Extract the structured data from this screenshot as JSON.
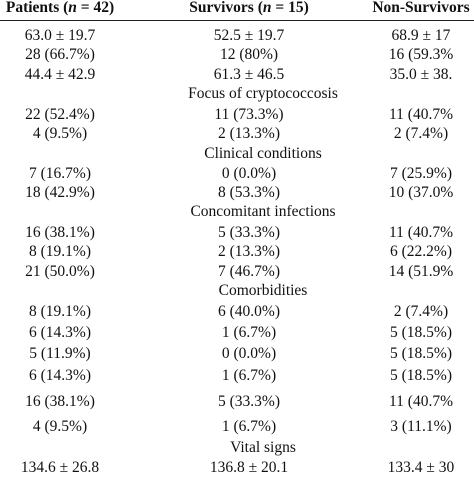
{
  "header": {
    "col1": "Patients (n = 42)",
    "col2": "Survivors (n = 15)",
    "col3": "Non-Survivors"
  },
  "rows": [
    {
      "type": "data",
      "values": [
        "63.0 ± 19.7",
        "52.5 ± 19.7",
        "68.9 ± 17"
      ]
    },
    {
      "type": "data",
      "values": [
        "28 (66.7%)",
        "12 (80%)",
        "16 (59.3%"
      ]
    },
    {
      "type": "data",
      "values": [
        "44.4 ± 42.9",
        "61.3 ± 46.5",
        "35.0 ± 38."
      ]
    },
    {
      "type": "section",
      "label": "Focus of cryptococcosis"
    },
    {
      "type": "data",
      "values": [
        "22 (52.4%)",
        "11 (73.3%)",
        "11 (40.7%"
      ]
    },
    {
      "type": "data",
      "values": [
        "4 (9.5%)",
        "2 (13.3%)",
        "2 (7.4%)"
      ]
    },
    {
      "type": "section",
      "label": "Clinical conditions"
    },
    {
      "type": "data",
      "values": [
        "7 (16.7%)",
        "0 (0.0%)",
        "7 (25.9%)"
      ]
    },
    {
      "type": "data",
      "values": [
        "18 (42.9%)",
        "8 (53.3%)",
        "10 (37.0%"
      ]
    },
    {
      "type": "section",
      "label": "Concomitant infections"
    },
    {
      "type": "data",
      "values": [
        "16 (38.1%)",
        "5 (33.3%)",
        "11 (40.7%"
      ]
    },
    {
      "type": "data",
      "values": [
        "8 (19.1%)",
        "2 (13.3%)",
        "6 (22.2%)"
      ]
    },
    {
      "type": "data",
      "values": [
        "21 (50.0%)",
        "7 (46.7%)",
        "14 (51.9%"
      ]
    },
    {
      "type": "section",
      "label": "Comorbidities"
    },
    {
      "type": "data",
      "values": [
        "8 (19.1%)",
        "6 (40.0%)",
        "2 (7.4%)"
      ]
    },
    {
      "type": "data",
      "values": [
        "6 (14.3%)",
        "1 (6.7%)",
        "5 (18.5%)"
      ]
    },
    {
      "type": "data",
      "values": [
        "5 (11.9%)",
        "0 (0.0%)",
        "5 (18.5%)"
      ]
    },
    {
      "type": "data",
      "values": [
        "6 (14.3%)",
        "1 (6.7%)",
        "5 (18.5%)"
      ]
    },
    {
      "type": "data",
      "values": [
        "16 (38.1%)",
        "5 (33.3%)",
        "11 (40.7%"
      ]
    },
    {
      "type": "data",
      "values": [
        "4 (9.5%)",
        "1 (6.7%)",
        "3 (11.1%)"
      ]
    },
    {
      "type": "section",
      "label": "Vital signs"
    },
    {
      "type": "data",
      "values": [
        "134.6 ± 26.8",
        "136.8 ± 20.1",
        "133.4 ± 30"
      ]
    }
  ]
}
